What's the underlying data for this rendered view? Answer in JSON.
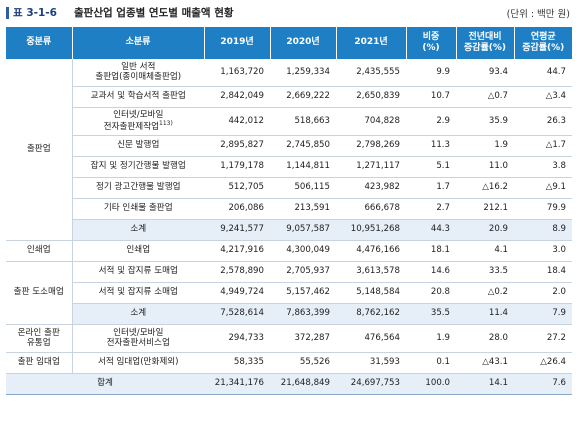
{
  "title": {
    "label": "표 3-1-6",
    "text": "출판산업 업종별 연도별 매출액 현황",
    "unit": "(단위 : 백만 원)"
  },
  "headers": [
    "중분류",
    "소분류",
    "2019년",
    "2020년",
    "2021년",
    "비중\n(%)",
    "전년대비\n증감률(%)",
    "연평균\n증감률(%)"
  ],
  "groups": [
    {
      "name": "출판업",
      "rows": [
        {
          "sub": "일반 서적\n출판업(종이매체출판업)",
          "y2019": "1,163,720",
          "y2020": "1,259,334",
          "y2021": "2,435,555",
          "share": "9.9",
          "yoy": "93.4",
          "cagr": "44.7",
          "tall": true
        },
        {
          "sub": "교과서 및 학습서적 출판업",
          "y2019": "2,842,049",
          "y2020": "2,669,222",
          "y2021": "2,650,839",
          "share": "10.7",
          "yoy": "△0.7",
          "cagr": "△3.4"
        },
        {
          "sub": "인터넷/모바일\n전자출판제작업",
          "sup": "113)",
          "y2019": "442,012",
          "y2020": "518,663",
          "y2021": "704,828",
          "share": "2.9",
          "yoy": "35.9",
          "cagr": "26.3",
          "tall": true
        },
        {
          "sub": "신문 발행업",
          "y2019": "2,895,827",
          "y2020": "2,745,850",
          "y2021": "2,798,269",
          "share": "11.3",
          "yoy": "1.9",
          "cagr": "△1.7"
        },
        {
          "sub": "잡지 및 정기간행물 발행업",
          "y2019": "1,179,178",
          "y2020": "1,144,811",
          "y2021": "1,271,117",
          "share": "5.1",
          "yoy": "11.0",
          "cagr": "3.8"
        },
        {
          "sub": "정기 광고간행물 발행업",
          "y2019": "512,705",
          "y2020": "506,115",
          "y2021": "423,982",
          "share": "1.7",
          "yoy": "△16.2",
          "cagr": "△9.1"
        },
        {
          "sub": "기타 인쇄물 출판업",
          "y2019": "206,086",
          "y2020": "213,591",
          "y2021": "666,678",
          "share": "2.7",
          "yoy": "212.1",
          "cagr": "79.9"
        },
        {
          "sub": "소계",
          "y2019": "9,241,577",
          "y2020": "9,057,587",
          "y2021": "10,951,268",
          "share": "44.3",
          "yoy": "20.9",
          "cagr": "8.9",
          "subtotal": true
        }
      ]
    },
    {
      "name": "인쇄업",
      "rows": [
        {
          "sub": "인쇄업",
          "y2019": "4,217,916",
          "y2020": "4,300,049",
          "y2021": "4,476,166",
          "share": "18.1",
          "yoy": "4.1",
          "cagr": "3.0"
        }
      ]
    },
    {
      "name": "출판 도소매업",
      "rows": [
        {
          "sub": "서적 및 잡지류 도매업",
          "y2019": "2,578,890",
          "y2020": "2,705,937",
          "y2021": "3,613,578",
          "share": "14.6",
          "yoy": "33.5",
          "cagr": "18.4"
        },
        {
          "sub": "서적 및 잡지류 소매업",
          "y2019": "4,949,724",
          "y2020": "5,157,462",
          "y2021": "5,148,584",
          "share": "20.8",
          "yoy": "△0.2",
          "cagr": "2.0"
        },
        {
          "sub": "소계",
          "y2019": "7,528,614",
          "y2020": "7,863,399",
          "y2021": "8,762,162",
          "share": "35.5",
          "yoy": "11.4",
          "cagr": "7.9",
          "subtotal": true
        }
      ]
    },
    {
      "name": "온라인 출판\n유통업",
      "rows": [
        {
          "sub": "인터넷/모바일\n전자출판서비스업",
          "y2019": "294,733",
          "y2020": "372,287",
          "y2021": "476,564",
          "share": "1.9",
          "yoy": "28.0",
          "cagr": "27.2",
          "tall": true
        }
      ]
    },
    {
      "name": "출판 임대업",
      "rows": [
        {
          "sub": "서적 임대업(만화제외)",
          "y2019": "58,335",
          "y2020": "55,526",
          "y2021": "31,593",
          "share": "0.1",
          "yoy": "△43.1",
          "cagr": "△26.4"
        }
      ]
    }
  ],
  "total": {
    "label": "합계",
    "y2019": "21,341,176",
    "y2020": "21,648,849",
    "y2021": "24,697,753",
    "share": "100.0",
    "yoy": "14.1",
    "cagr": "7.6"
  }
}
